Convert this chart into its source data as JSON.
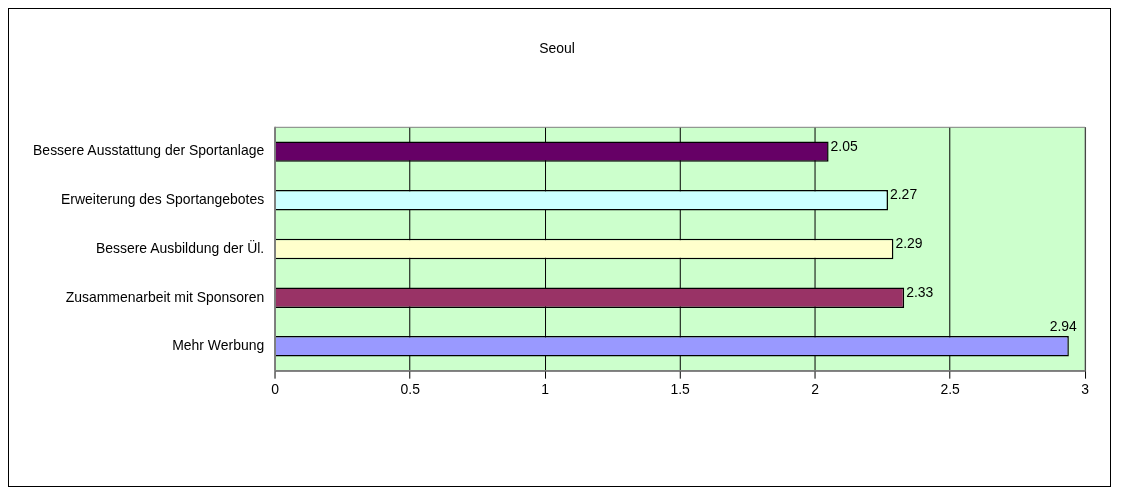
{
  "chart_data": {
    "type": "bar",
    "orientation": "horizontal",
    "title": "Seoul",
    "categories": [
      "Bessere Ausstattung der Sportanlage",
      "Erweiterung des Sportangebotes",
      "Bessere Ausbildung der Ül.",
      "Zusammenarbeit mit Sponsoren",
      "Mehr Werbung"
    ],
    "values": [
      2.05,
      2.27,
      2.29,
      2.33,
      2.94
    ],
    "colors": [
      "#660066",
      "#ccffff",
      "#ffffcc",
      "#993366",
      "#9999ff"
    ],
    "xlim": [
      0,
      3
    ],
    "xticks": [
      0,
      0.5,
      1,
      1.5,
      2,
      2.5,
      3
    ],
    "grid": "x",
    "legend": false,
    "data_labels": true
  }
}
